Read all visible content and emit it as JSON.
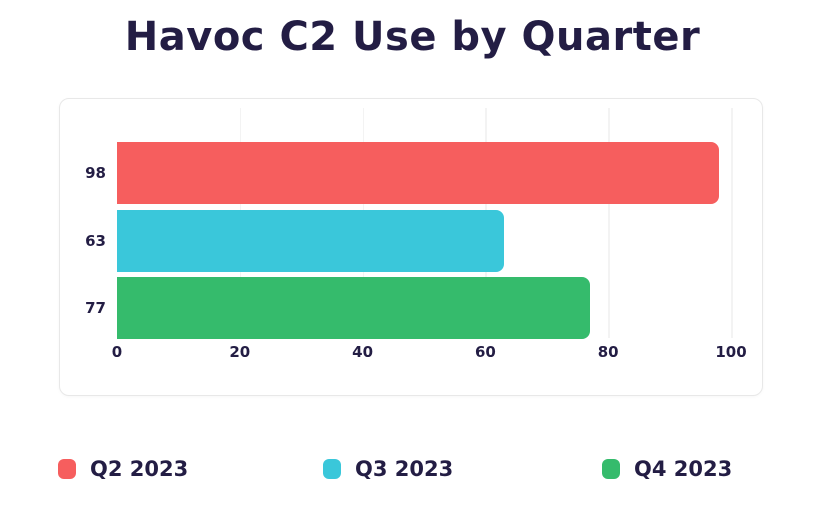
{
  "title": "Havoc C2 Use by Quarter",
  "colors": {
    "text_dark": "#231d44",
    "card_border": "#e8e8e8",
    "gridline": "#f3f3f3",
    "red": "#f65e5e",
    "cyan": "#3ac7da",
    "green": "#35bb6c"
  },
  "chart_data": {
    "type": "bar",
    "orientation": "horizontal",
    "title": "Havoc C2 Use by Quarter",
    "categories": [
      "Q2 2023",
      "Q3 2023",
      "Q4 2023"
    ],
    "values": [
      98,
      63,
      77
    ],
    "value_labels": [
      "98",
      "63",
      "77"
    ],
    "bar_colors": [
      "#f65e5e",
      "#3ac7da",
      "#35bb6c"
    ],
    "xlim": [
      0,
      100
    ],
    "x_ticks": [
      0,
      20,
      40,
      60,
      80,
      100
    ],
    "x_tick_labels": [
      "0",
      "20",
      "40",
      "60",
      "80",
      "100"
    ],
    "grid": true,
    "legend_position": "bottom",
    "legend": [
      {
        "label": "Q2 2023",
        "color": "#f65e5e"
      },
      {
        "label": "Q3 2023",
        "color": "#3ac7da"
      },
      {
        "label": "Q4 2023",
        "color": "#35bb6c"
      }
    ]
  }
}
